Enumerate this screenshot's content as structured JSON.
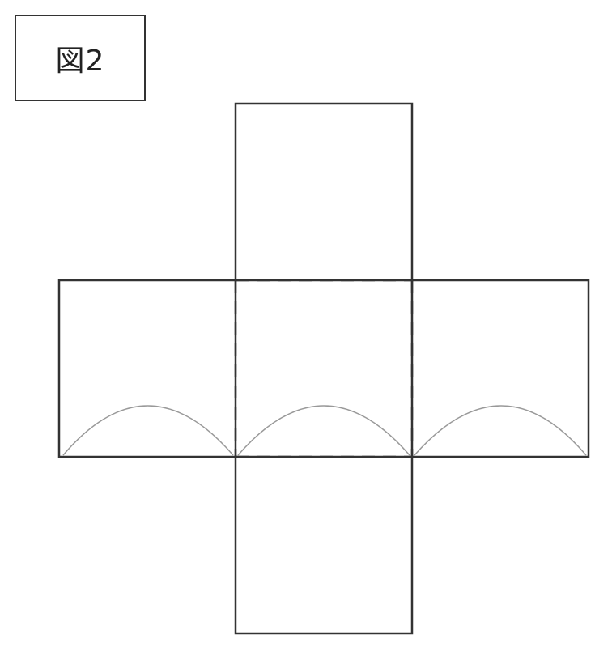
{
  "figure": {
    "label": "図2"
  },
  "colors": {
    "outline": "#333333",
    "arc": "#999999",
    "background": "#ffffff"
  }
}
